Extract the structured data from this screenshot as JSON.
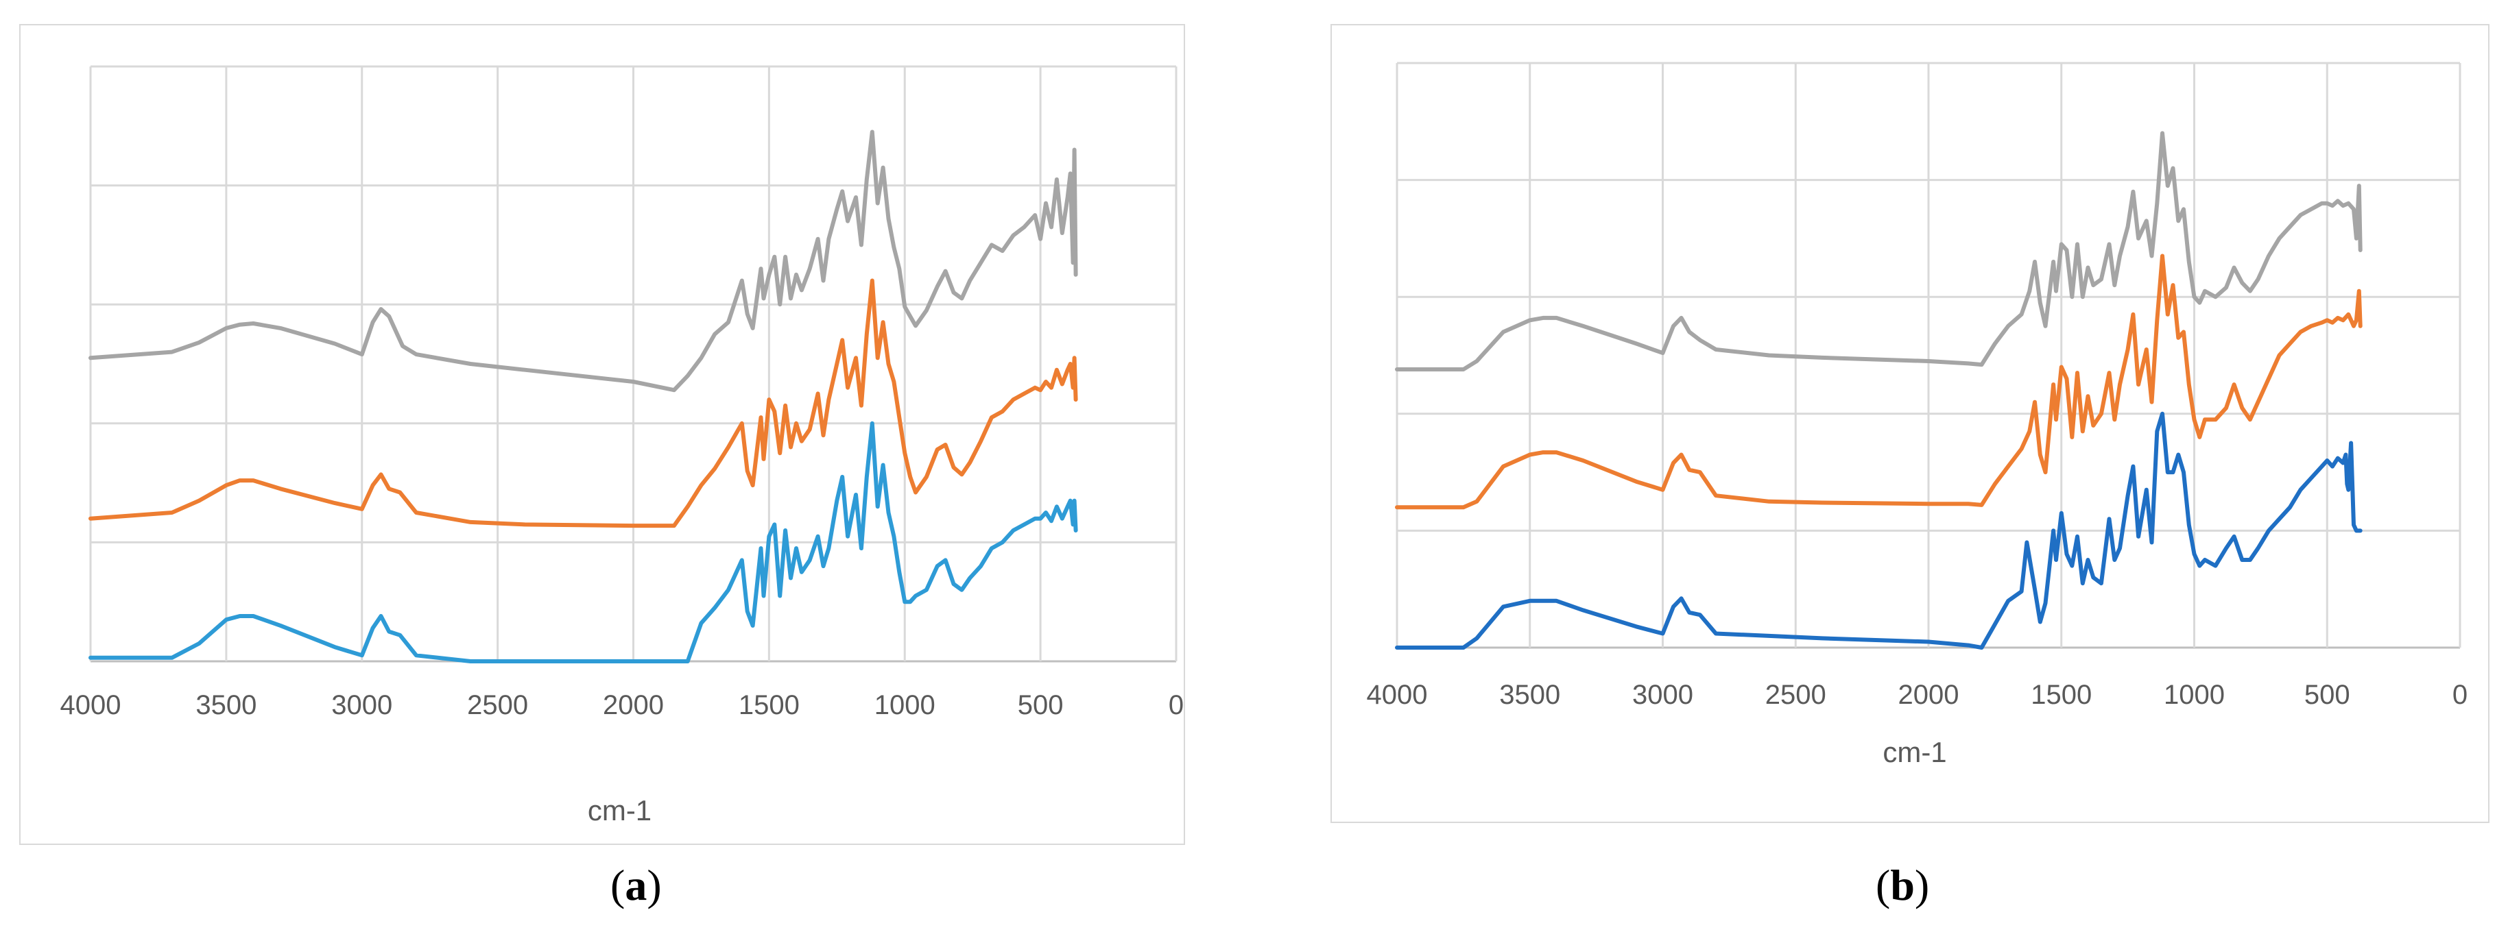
{
  "captions": {
    "a": {
      "open": "(",
      "letter": "a",
      "close": ")"
    },
    "b": {
      "open": "(",
      "letter": "b",
      "close": ")"
    }
  },
  "chart_data": [
    {
      "panel": "a",
      "type": "line",
      "title": "",
      "xlabel": "cm-1",
      "ylabel": "",
      "xlim": [
        4000,
        0
      ],
      "x_reversed": true,
      "x_ticks": [
        4000,
        3500,
        3000,
        2500,
        2000,
        1500,
        1000,
        500,
        0
      ],
      "ylim": [
        0,
        5
      ],
      "y_gridlines": [
        0,
        1,
        2,
        3,
        4,
        5
      ],
      "grid": true,
      "legend": "none",
      "series": [
        {
          "color": "#a5a5a5",
          "x": [
            4000,
            3700,
            3600,
            3500,
            3450,
            3400,
            3300,
            3100,
            3000,
            2960,
            2930,
            2900,
            2850,
            2800,
            2600,
            2400,
            2000,
            1850,
            1800,
            1750,
            1700,
            1650,
            1600,
            1580,
            1560,
            1530,
            1520,
            1500,
            1480,
            1460,
            1440,
            1420,
            1400,
            1380,
            1350,
            1320,
            1300,
            1280,
            1250,
            1230,
            1210,
            1180,
            1160,
            1140,
            1120,
            1100,
            1080,
            1060,
            1040,
            1020,
            1000,
            980,
            960,
            920,
            880,
            850,
            820,
            790,
            760,
            720,
            680,
            640,
            600,
            560,
            520,
            500,
            480,
            460,
            440,
            420,
            400,
            390,
            380,
            375,
            370
          ],
          "y": [
            2.55,
            2.6,
            2.68,
            2.8,
            2.83,
            2.84,
            2.8,
            2.67,
            2.58,
            2.85,
            2.96,
            2.9,
            2.65,
            2.58,
            2.5,
            2.45,
            2.35,
            2.28,
            2.4,
            2.55,
            2.75,
            2.85,
            3.2,
            2.92,
            2.8,
            3.3,
            3.05,
            3.25,
            3.4,
            3.0,
            3.4,
            3.05,
            3.25,
            3.12,
            3.3,
            3.55,
            3.2,
            3.55,
            3.8,
            3.95,
            3.7,
            3.9,
            3.5,
            4.05,
            4.45,
            3.85,
            4.15,
            3.72,
            3.48,
            3.3,
            2.98,
            2.9,
            2.82,
            2.95,
            3.15,
            3.28,
            3.1,
            3.05,
            3.2,
            3.35,
            3.5,
            3.45,
            3.58,
            3.65,
            3.75,
            3.55,
            3.85,
            3.65,
            4.05,
            3.6,
            3.9,
            4.1,
            3.35,
            4.3,
            3.25
          ]
        },
        {
          "color": "#ed7d31",
          "x": [
            4000,
            3700,
            3600,
            3500,
            3450,
            3400,
            3300,
            3100,
            3000,
            2960,
            2930,
            2900,
            2860,
            2800,
            2600,
            2400,
            2000,
            1850,
            1800,
            1750,
            1700,
            1650,
            1600,
            1580,
            1560,
            1530,
            1520,
            1500,
            1480,
            1460,
            1440,
            1420,
            1400,
            1380,
            1350,
            1320,
            1300,
            1280,
            1250,
            1230,
            1210,
            1180,
            1160,
            1140,
            1120,
            1100,
            1080,
            1060,
            1040,
            1020,
            1000,
            980,
            960,
            920,
            880,
            850,
            820,
            790,
            760,
            720,
            680,
            640,
            600,
            560,
            520,
            500,
            480,
            460,
            440,
            420,
            400,
            390,
            380,
            375,
            370
          ],
          "y": [
            1.2,
            1.25,
            1.35,
            1.48,
            1.52,
            1.52,
            1.45,
            1.33,
            1.28,
            1.48,
            1.57,
            1.45,
            1.42,
            1.25,
            1.17,
            1.15,
            1.14,
            1.14,
            1.3,
            1.48,
            1.62,
            1.8,
            2.0,
            1.6,
            1.48,
            2.05,
            1.7,
            2.2,
            2.1,
            1.75,
            2.15,
            1.8,
            2.0,
            1.85,
            1.95,
            2.25,
            1.9,
            2.2,
            2.5,
            2.7,
            2.3,
            2.55,
            2.15,
            2.75,
            3.2,
            2.55,
            2.85,
            2.5,
            2.35,
            2.05,
            1.75,
            1.55,
            1.42,
            1.55,
            1.78,
            1.82,
            1.63,
            1.57,
            1.67,
            1.85,
            2.05,
            2.1,
            2.2,
            2.25,
            2.3,
            2.28,
            2.35,
            2.3,
            2.45,
            2.33,
            2.45,
            2.5,
            2.3,
            2.55,
            2.2
          ]
        },
        {
          "color": "#2e9bd6",
          "x": [
            4000,
            3700,
            3600,
            3500,
            3450,
            3400,
            3300,
            3100,
            3000,
            2960,
            2930,
            2900,
            2860,
            2800,
            2600,
            2400,
            2000,
            1850,
            1800,
            1750,
            1700,
            1650,
            1600,
            1580,
            1560,
            1530,
            1520,
            1500,
            1480,
            1460,
            1440,
            1420,
            1400,
            1380,
            1350,
            1320,
            1300,
            1280,
            1250,
            1230,
            1210,
            1180,
            1160,
            1140,
            1120,
            1100,
            1080,
            1060,
            1040,
            1020,
            1000,
            980,
            960,
            920,
            880,
            850,
            820,
            790,
            760,
            720,
            680,
            640,
            600,
            560,
            520,
            500,
            480,
            460,
            440,
            420,
            400,
            390,
            380,
            375,
            370
          ],
          "y": [
            0.03,
            0.03,
            0.15,
            0.35,
            0.38,
            0.38,
            0.3,
            0.12,
            0.05,
            0.28,
            0.38,
            0.25,
            0.22,
            0.05,
            0.0,
            0.0,
            0.0,
            0.0,
            0.0,
            0.32,
            0.45,
            0.6,
            0.85,
            0.42,
            0.3,
            0.95,
            0.55,
            1.05,
            1.15,
            0.55,
            1.1,
            0.7,
            0.95,
            0.75,
            0.85,
            1.05,
            0.8,
            0.95,
            1.35,
            1.55,
            1.05,
            1.4,
            0.95,
            1.55,
            2.0,
            1.3,
            1.65,
            1.25,
            1.05,
            0.75,
            0.5,
            0.5,
            0.55,
            0.6,
            0.8,
            0.85,
            0.65,
            0.6,
            0.7,
            0.8,
            0.95,
            1.0,
            1.1,
            1.15,
            1.2,
            1.2,
            1.25,
            1.18,
            1.3,
            1.2,
            1.3,
            1.35,
            1.15,
            1.35,
            1.1
          ]
        }
      ]
    },
    {
      "panel": "b",
      "type": "line",
      "title": "",
      "xlabel": "cm-1",
      "ylabel": "",
      "xlim": [
        4000,
        0
      ],
      "x_reversed": true,
      "x_ticks": [
        4000,
        3500,
        3000,
        2500,
        2000,
        1500,
        1000,
        500,
        0
      ],
      "ylim": [
        0,
        5
      ],
      "y_gridlines": [
        0,
        1,
        2,
        3,
        4,
        5
      ],
      "grid": true,
      "legend": "none",
      "series": [
        {
          "color": "#a5a5a5",
          "x": [
            4000,
            3750,
            3700,
            3600,
            3500,
            3450,
            3400,
            3300,
            3100,
            3000,
            2960,
            2930,
            2900,
            2860,
            2800,
            2600,
            2400,
            2000,
            1850,
            1800,
            1750,
            1700,
            1650,
            1620,
            1600,
            1580,
            1560,
            1530,
            1520,
            1500,
            1480,
            1460,
            1440,
            1420,
            1400,
            1380,
            1350,
            1320,
            1300,
            1280,
            1250,
            1230,
            1210,
            1180,
            1160,
            1140,
            1120,
            1100,
            1080,
            1060,
            1040,
            1020,
            1000,
            980,
            960,
            920,
            880,
            850,
            820,
            790,
            760,
            720,
            680,
            640,
            600,
            560,
            520,
            500,
            480,
            460,
            440,
            420,
            400,
            390,
            380,
            375
          ],
          "y": [
            2.38,
            2.38,
            2.45,
            2.7,
            2.8,
            2.82,
            2.82,
            2.75,
            2.6,
            2.52,
            2.75,
            2.82,
            2.7,
            2.63,
            2.55,
            2.5,
            2.48,
            2.45,
            2.43,
            2.42,
            2.6,
            2.75,
            2.85,
            3.05,
            3.3,
            2.95,
            2.75,
            3.3,
            3.05,
            3.45,
            3.4,
            3.0,
            3.45,
            3.0,
            3.25,
            3.1,
            3.15,
            3.45,
            3.1,
            3.35,
            3.6,
            3.9,
            3.5,
            3.65,
            3.35,
            3.8,
            4.4,
            3.95,
            4.1,
            3.65,
            3.75,
            3.3,
            3.0,
            2.95,
            3.05,
            3.0,
            3.08,
            3.25,
            3.12,
            3.05,
            3.15,
            3.35,
            3.5,
            3.6,
            3.7,
            3.75,
            3.8,
            3.8,
            3.78,
            3.82,
            3.78,
            3.8,
            3.75,
            3.5,
            3.95,
            3.4
          ]
        },
        {
          "color": "#ed7d31",
          "x": [
            4000,
            3750,
            3700,
            3600,
            3500,
            3450,
            3400,
            3300,
            3100,
            3000,
            2960,
            2930,
            2900,
            2860,
            2800,
            2600,
            2400,
            2000,
            1850,
            1800,
            1750,
            1700,
            1650,
            1620,
            1600,
            1580,
            1560,
            1530,
            1520,
            1500,
            1480,
            1460,
            1440,
            1420,
            1400,
            1380,
            1350,
            1320,
            1300,
            1280,
            1250,
            1230,
            1210,
            1180,
            1160,
            1140,
            1120,
            1100,
            1080,
            1060,
            1040,
            1020,
            1000,
            980,
            960,
            920,
            880,
            850,
            820,
            790,
            760,
            720,
            680,
            640,
            600,
            560,
            520,
            500,
            480,
            460,
            440,
            420,
            400,
            390,
            380,
            375
          ],
          "y": [
            1.2,
            1.2,
            1.25,
            1.55,
            1.65,
            1.67,
            1.67,
            1.6,
            1.42,
            1.35,
            1.58,
            1.65,
            1.52,
            1.5,
            1.3,
            1.25,
            1.24,
            1.23,
            1.23,
            1.22,
            1.4,
            1.55,
            1.7,
            1.85,
            2.1,
            1.65,
            1.5,
            2.25,
            1.95,
            2.4,
            2.3,
            1.8,
            2.35,
            1.85,
            2.15,
            1.9,
            2.0,
            2.35,
            1.95,
            2.25,
            2.55,
            2.85,
            2.25,
            2.55,
            2.1,
            2.8,
            3.35,
            2.85,
            3.1,
            2.65,
            2.7,
            2.25,
            1.95,
            1.8,
            1.95,
            1.95,
            2.05,
            2.25,
            2.05,
            1.95,
            2.1,
            2.3,
            2.5,
            2.6,
            2.7,
            2.75,
            2.78,
            2.8,
            2.78,
            2.82,
            2.8,
            2.85,
            2.75,
            2.8,
            3.05,
            2.75
          ]
        },
        {
          "color": "#1f6fc4",
          "x": [
            4000,
            3750,
            3700,
            3600,
            3500,
            3450,
            3400,
            3300,
            3100,
            3000,
            2960,
            2930,
            2900,
            2860,
            2800,
            2600,
            2400,
            2000,
            1850,
            1800,
            1750,
            1700,
            1650,
            1630,
            1600,
            1580,
            1560,
            1530,
            1520,
            1500,
            1480,
            1460,
            1440,
            1420,
            1400,
            1380,
            1350,
            1320,
            1300,
            1280,
            1250,
            1230,
            1210,
            1180,
            1160,
            1140,
            1120,
            1100,
            1080,
            1060,
            1040,
            1020,
            1000,
            980,
            960,
            920,
            880,
            850,
            820,
            790,
            760,
            720,
            680,
            640,
            600,
            560,
            520,
            500,
            480,
            460,
            440,
            430,
            425,
            420,
            410,
            400,
            390,
            380,
            375
          ],
          "y": [
            0.0,
            0.0,
            0.08,
            0.35,
            0.4,
            0.4,
            0.4,
            0.32,
            0.18,
            0.12,
            0.35,
            0.42,
            0.3,
            0.28,
            0.12,
            0.1,
            0.08,
            0.05,
            0.02,
            0.0,
            0.2,
            0.4,
            0.48,
            0.9,
            0.5,
            0.22,
            0.38,
            1.0,
            0.75,
            1.15,
            0.8,
            0.7,
            0.95,
            0.55,
            0.75,
            0.6,
            0.55,
            1.1,
            0.75,
            0.85,
            1.3,
            1.55,
            0.95,
            1.35,
            0.9,
            1.85,
            2.0,
            1.5,
            1.5,
            1.65,
            1.5,
            1.05,
            0.8,
            0.7,
            0.75,
            0.7,
            0.85,
            0.95,
            0.75,
            0.75,
            0.85,
            1.0,
            1.1,
            1.2,
            1.35,
            1.45,
            1.55,
            1.6,
            1.55,
            1.62,
            1.58,
            1.65,
            1.4,
            1.35,
            1.75,
            1.05,
            1.0,
            1.0,
            1.0
          ]
        }
      ]
    }
  ]
}
